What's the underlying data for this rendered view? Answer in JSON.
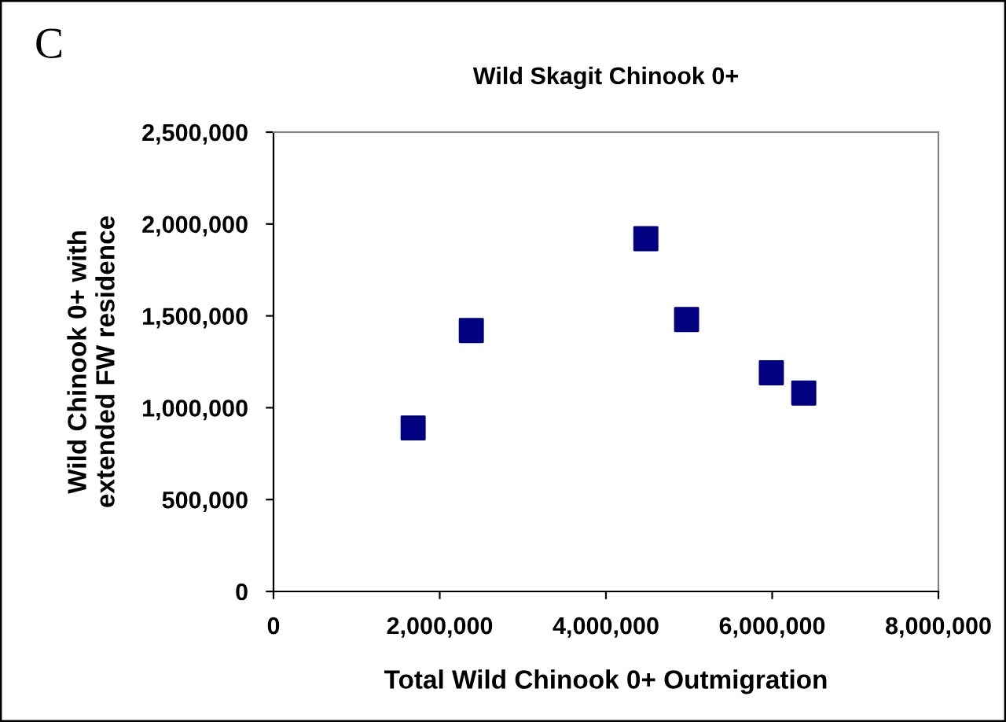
{
  "chart_data": {
    "type": "scatter",
    "title": "Wild Skagit Chinook 0+",
    "xlabel": "Total Wild Chinook 0+ Outmigration",
    "ylabel": "Wild Chinook 0+ with\nextended FW residence",
    "annotations": [
      "C"
    ],
    "x": [
      1680000,
      2380000,
      4480000,
      4970000,
      5990000,
      6380000
    ],
    "series": [
      {
        "color": "#000080",
        "values": [
          890000,
          1420000,
          1920000,
          1480000,
          1190000,
          1080000
        ]
      }
    ],
    "marker": "square",
    "grid": false,
    "xlim": [
      0,
      8000000
    ],
    "xticks": [
      {
        "value": 0,
        "label": "0"
      },
      {
        "value": 2000000,
        "label": "2,000,000"
      },
      {
        "value": 4000000,
        "label": "4,000,000"
      },
      {
        "value": 6000000,
        "label": "6,000,000"
      },
      {
        "value": 8000000,
        "label": "8,000,000"
      }
    ],
    "ylim": [
      0,
      2500000
    ],
    "yticks": [
      {
        "value": 0,
        "label": "0"
      },
      {
        "value": 500000,
        "label": "500,000"
      },
      {
        "value": 1000000,
        "label": "1,000,000"
      },
      {
        "value": 1500000,
        "label": "1,500,000"
      },
      {
        "value": 2000000,
        "label": "2,000,000"
      },
      {
        "value": 2500000,
        "label": "2,500,000"
      }
    ]
  }
}
